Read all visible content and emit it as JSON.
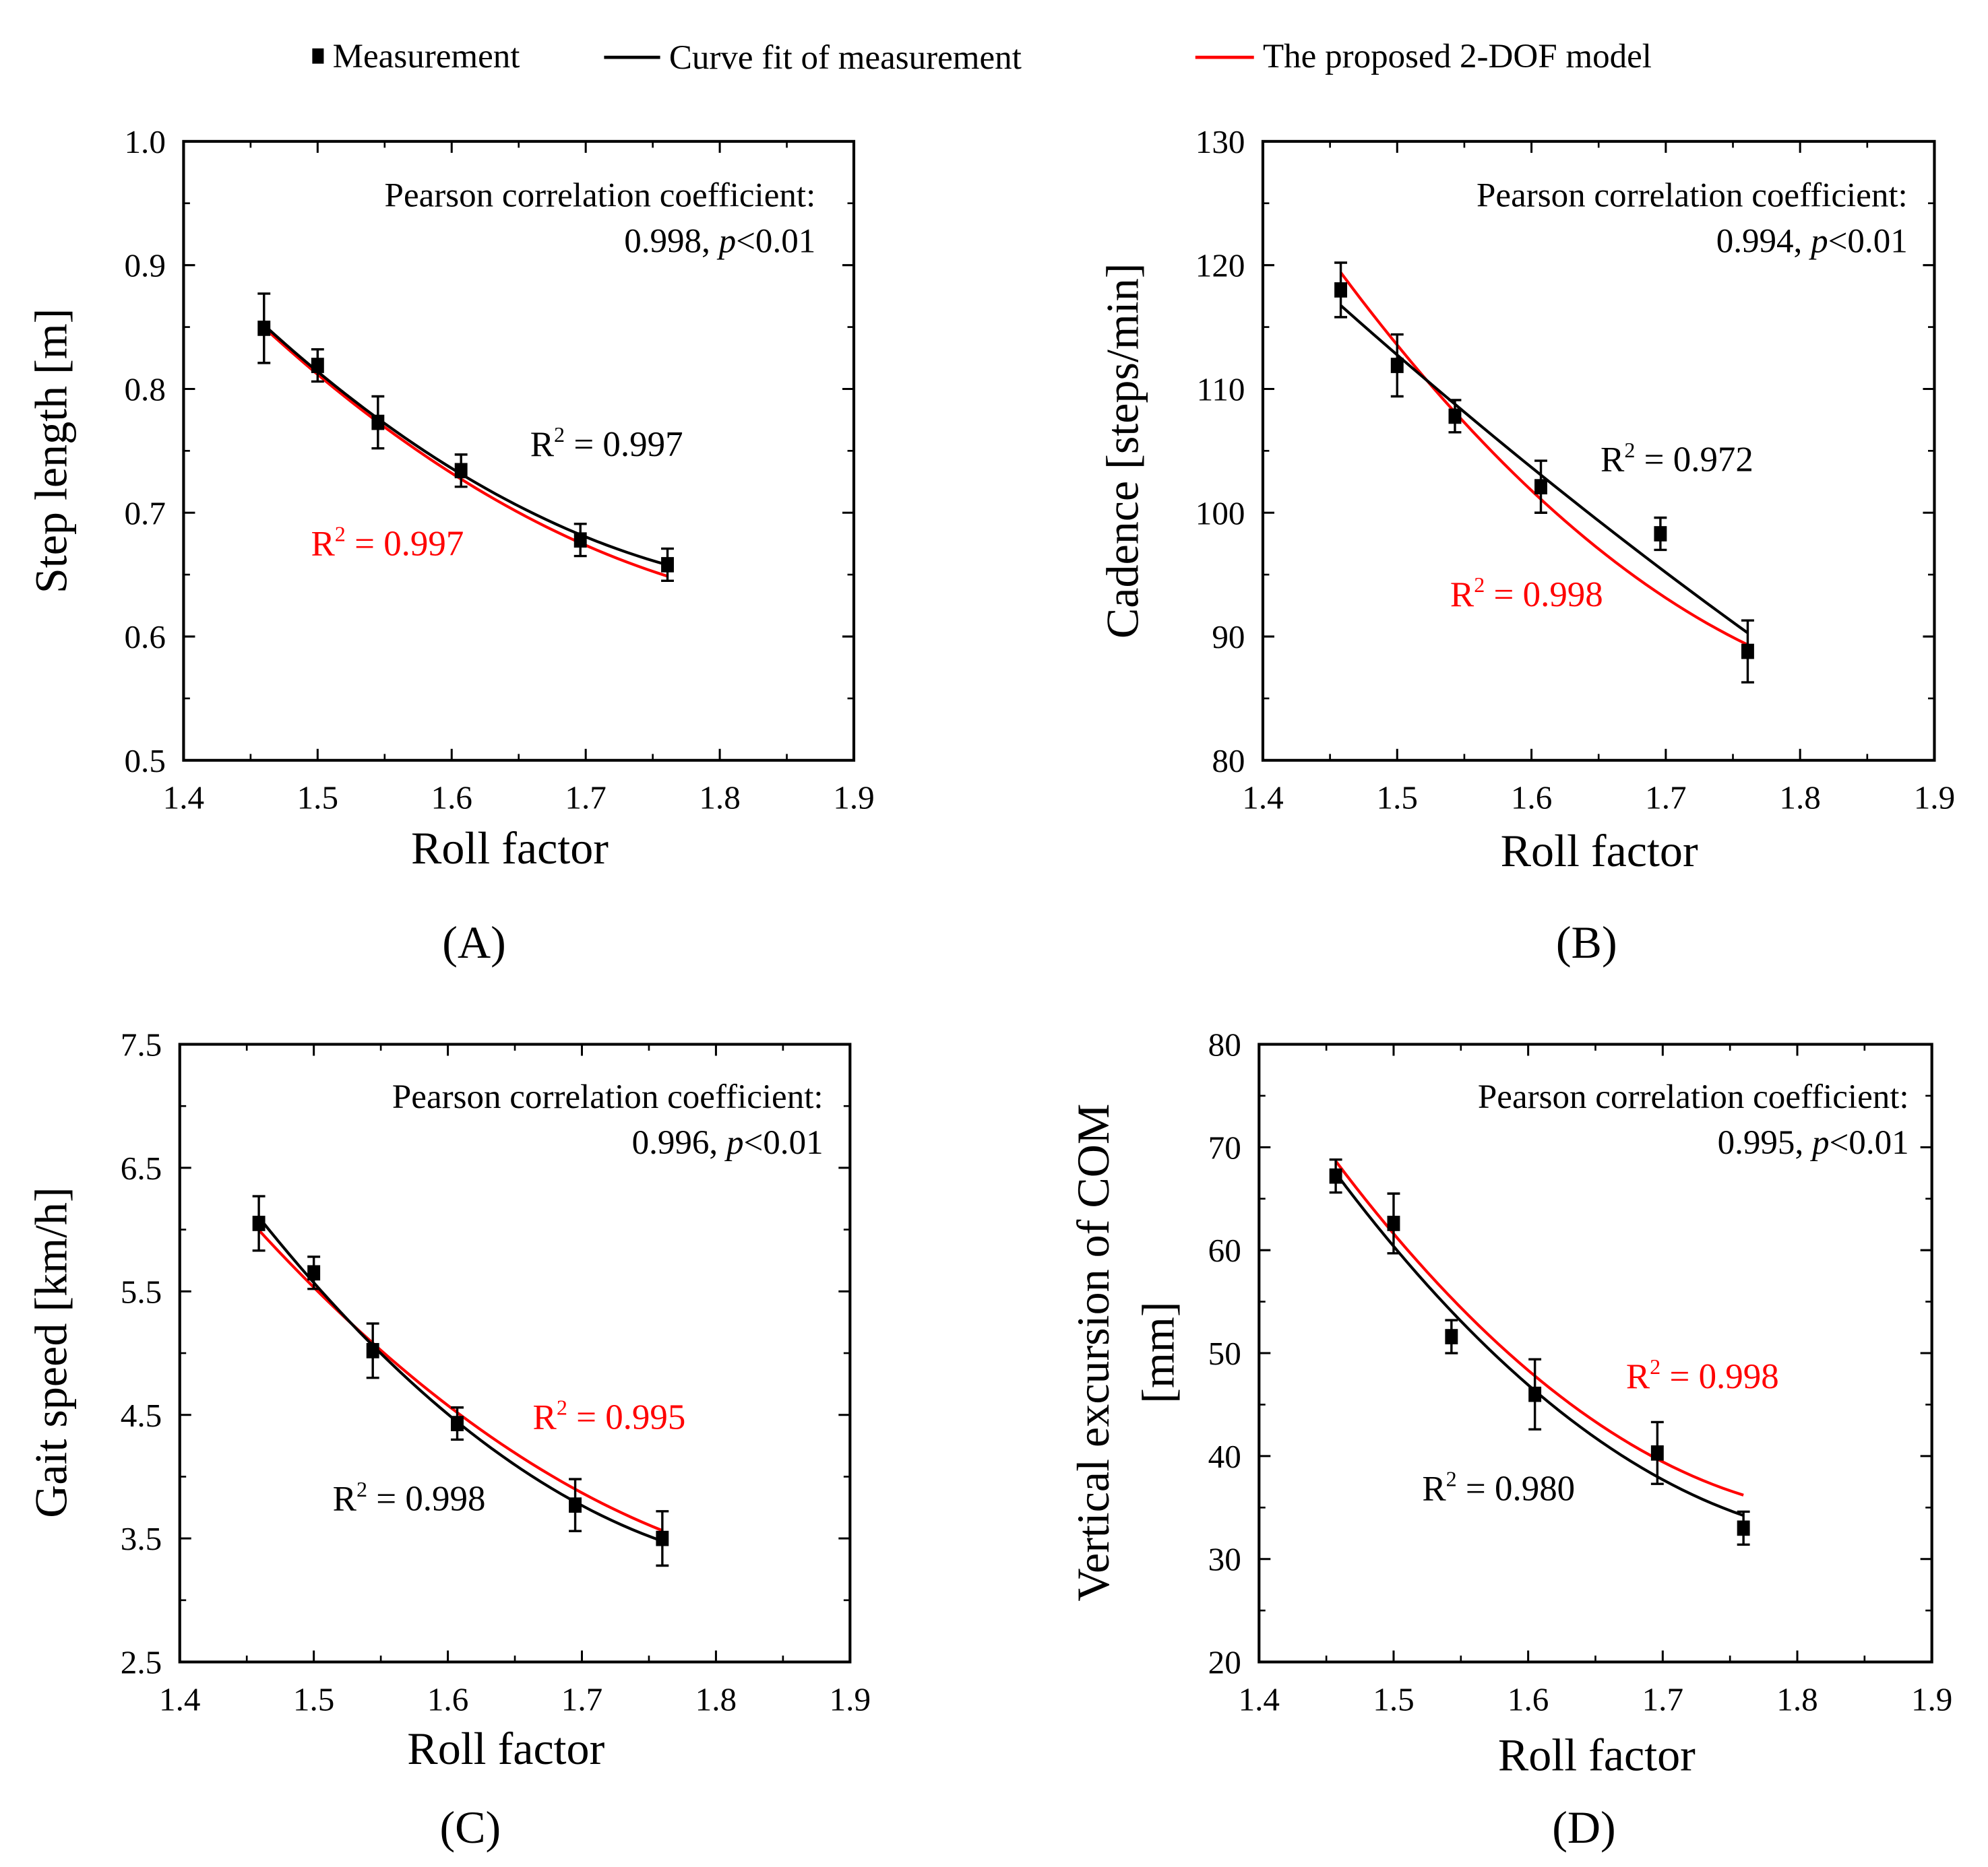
{
  "legend": {
    "measurement": "Measurement",
    "curve_fit": "Curve fit of measurement",
    "model": "The proposed 2-DOF model"
  },
  "colors": {
    "measurement": "#000000",
    "curve_fit": "#000000",
    "model": "#ff0000"
  },
  "chart_data": [
    {
      "panel": "(A)",
      "type": "scatter",
      "xlabel": "Roll factor",
      "ylabel": "Step length [m]",
      "xlim": [
        1.4,
        1.9
      ],
      "ylim": [
        0.5,
        1.0
      ],
      "xticks": [
        "1.4",
        "1.5",
        "1.6",
        "1.7",
        "1.8",
        "1.9"
      ],
      "yticks": [
        "0.5",
        "0.6",
        "0.7",
        "0.8",
        "0.9",
        "1.0"
      ],
      "pearson_label": "Pearson correlation coefficient:",
      "pearson_value": "0.998, ",
      "p_label": "p",
      "p_value": "<0.01",
      "r2_fit": "0.997",
      "r2_model": "0.997",
      "measurement": {
        "x": [
          1.46,
          1.5,
          1.545,
          1.607,
          1.696,
          1.761
        ],
        "y": [
          0.849,
          0.819,
          0.773,
          0.734,
          0.678,
          0.658
        ],
        "err": [
          0.028,
          0.013,
          0.021,
          0.013,
          0.013,
          0.013
        ]
      },
      "curve_fit": {
        "x": [
          1.46,
          1.5,
          1.545,
          1.607,
          1.696,
          1.761
        ],
        "y": [
          0.851,
          0.815,
          0.776,
          0.731,
          0.682,
          0.658
        ]
      },
      "model": {
        "x": [
          1.46,
          1.5,
          1.545,
          1.607,
          1.696,
          1.761
        ],
        "y": [
          0.85,
          0.812,
          0.772,
          0.727,
          0.677,
          0.648
        ]
      }
    },
    {
      "panel": "(B)",
      "type": "scatter",
      "xlabel": "Roll factor",
      "ylabel": "Cadence [steps/min]",
      "xlim": [
        1.4,
        1.9
      ],
      "ylim": [
        80,
        130
      ],
      "xticks": [
        "1.4",
        "1.5",
        "1.6",
        "1.7",
        "1.8",
        "1.9"
      ],
      "yticks": [
        "80",
        "90",
        "100",
        "110",
        "120",
        "130"
      ],
      "pearson_label": "Pearson correlation coefficient:",
      "pearson_value": "0.994, ",
      "p_label": "p",
      "p_value": "<0.01",
      "r2_fit": "0.972",
      "r2_model": "0.998",
      "measurement": {
        "x": [
          1.458,
          1.5,
          1.543,
          1.607,
          1.696,
          1.761
        ],
        "y": [
          118,
          111.9,
          107.8,
          102.1,
          98.3,
          88.8
        ],
        "err": [
          2.2,
          2.5,
          1.3,
          2.1,
          1.3,
          2.5
        ]
      },
      "curve_fit": {
        "x": [
          1.458,
          1.5,
          1.543,
          1.607,
          1.696,
          1.761
        ],
        "y": [
          116.7,
          112.8,
          108.8,
          103.0,
          95.5,
          90.3
        ]
      },
      "model": {
        "x": [
          1.458,
          1.5,
          1.543,
          1.607,
          1.696,
          1.761
        ],
        "y": [
          119.3,
          113.8,
          108.0,
          101.0,
          93.5,
          89.3
        ]
      }
    },
    {
      "panel": "(C)",
      "type": "scatter",
      "xlabel": "Roll factor",
      "ylabel": "Gait speed [km/h]",
      "xlim": [
        1.4,
        1.9
      ],
      "ylim": [
        2.5,
        7.5
      ],
      "xticks": [
        "1.4",
        "1.5",
        "1.6",
        "1.7",
        "1.8",
        "1.9"
      ],
      "yticks": [
        "2.5",
        "3.5",
        "4.5",
        "5.5",
        "6.5",
        "7.5"
      ],
      "pearson_label": "Pearson correlation coefficient:",
      "pearson_value": "0.996, ",
      "p_label": "p",
      "p_value": "<0.01",
      "r2_fit": "0.998",
      "r2_model": "0.995",
      "measurement": {
        "x": [
          1.459,
          1.5,
          1.544,
          1.607,
          1.695,
          1.76
        ],
        "y": [
          6.05,
          5.65,
          5.02,
          4.43,
          3.77,
          3.5
        ],
        "err": [
          0.22,
          0.13,
          0.22,
          0.13,
          0.21,
          0.22
        ]
      },
      "curve_fit": {
        "x": [
          1.459,
          1.5,
          1.544,
          1.607,
          1.695,
          1.76
        ],
        "y": [
          6.08,
          5.6,
          5.07,
          4.42,
          3.8,
          3.48
        ]
      },
      "model": {
        "x": [
          1.459,
          1.5,
          1.544,
          1.607,
          1.695,
          1.76
        ],
        "y": [
          5.96,
          5.58,
          5.1,
          4.48,
          3.9,
          3.57
        ]
      }
    },
    {
      "panel": "(D)",
      "type": "scatter",
      "xlabel": "Roll factor",
      "ylabel": "Vertical excursion of COM",
      "ylabel2": "[mm]",
      "xlim": [
        1.4,
        1.9
      ],
      "ylim": [
        20,
        80
      ],
      "xticks": [
        "1.4",
        "1.5",
        "1.6",
        "1.7",
        "1.8",
        "1.9"
      ],
      "yticks": [
        "20",
        "30",
        "40",
        "50",
        "60",
        "70",
        "80"
      ],
      "pearson_label": "Pearson correlation coefficient:",
      "pearson_value": "0.995, ",
      "p_label": "p",
      "p_value": "<0.01",
      "r2_fit": "0.980",
      "r2_model": "0.998",
      "measurement": {
        "x": [
          1.457,
          1.5,
          1.543,
          1.605,
          1.696,
          1.76
        ],
        "y": [
          67.2,
          62.6,
          51.6,
          46,
          40.3,
          33
        ],
        "err": [
          1.6,
          2.9,
          1.6,
          3.4,
          3,
          1.6
        ]
      },
      "curve_fit": {
        "x": [
          1.457,
          1.5,
          1.543,
          1.605,
          1.696,
          1.76
        ],
        "y": [
          67.5,
          60.5,
          54.0,
          46.0,
          38.5,
          34.0
        ]
      },
      "model": {
        "x": [
          1.457,
          1.5,
          1.543,
          1.605,
          1.696,
          1.76
        ],
        "y": [
          68.5,
          61.8,
          55.5,
          47.5,
          39.8,
          36.2
        ]
      }
    }
  ]
}
